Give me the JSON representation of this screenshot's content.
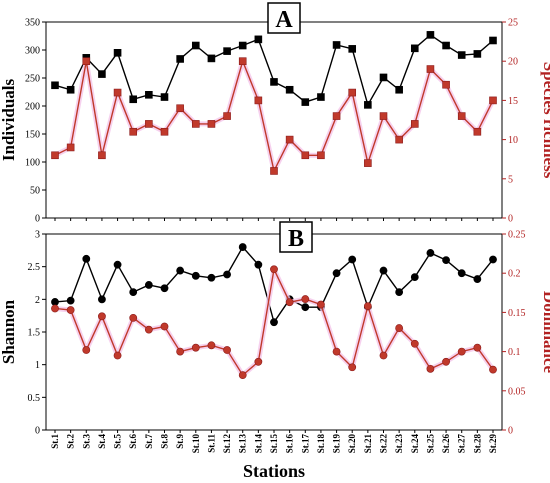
{
  "chart_data": [
    {
      "type": "line",
      "panel_label": "A",
      "x": [
        "St.1",
        "St.2",
        "St.3",
        "St.4",
        "St.5",
        "St.6",
        "St.7",
        "St.8",
        "St.9",
        "St.10",
        "St.11",
        "St.12",
        "St.13",
        "St.14",
        "St.15",
        "St.16",
        "St.17",
        "St.18",
        "St.19",
        "St.20",
        "St.21",
        "St.22",
        "St.23",
        "St.24",
        "St.25",
        "St.26",
        "St.27",
        "St.28",
        "St.29"
      ],
      "ylabel": "Individuals",
      "ylim": [
        0,
        350
      ],
      "yticks": [
        0,
        50,
        100,
        150,
        200,
        250,
        300,
        350
      ],
      "y2label": "Species richness",
      "y2lim": [
        0,
        25
      ],
      "y2ticks": [
        0,
        5,
        10,
        15,
        20,
        25
      ],
      "series": [
        {
          "axis": "left",
          "marker": "square",
          "color": "#000000",
          "values": [
            237,
            229,
            286,
            257,
            295,
            212,
            220,
            216,
            284,
            308,
            285,
            298,
            308,
            319,
            243,
            229,
            207,
            216,
            309,
            302,
            202,
            251,
            229,
            303,
            327,
            308,
            291,
            293,
            317
          ]
        },
        {
          "axis": "right",
          "marker": "square",
          "color": "#c0392b",
          "values": [
            8,
            9,
            20,
            8,
            16,
            11,
            12,
            11,
            14,
            12,
            12,
            13,
            20,
            15,
            6,
            10,
            8,
            8,
            13,
            16,
            7,
            13,
            10,
            12,
            19,
            17,
            13,
            11,
            15
          ]
        }
      ]
    },
    {
      "type": "line",
      "panel_label": "B",
      "x": [
        "St.1",
        "St.2",
        "St.3",
        "St.4",
        "St.5",
        "St.6",
        "St.7",
        "St.8",
        "St.9",
        "St.10",
        "St.11",
        "St.12",
        "St.13",
        "St.14",
        "St.15",
        "St.16",
        "St.17",
        "St.18",
        "St.19",
        "St.20",
        "St.21",
        "St.22",
        "St.23",
        "St.24",
        "St.25",
        "St.26",
        "St.27",
        "St.28",
        "St.29"
      ],
      "xlabel": "Stations",
      "ylabel": "Shannon",
      "ylim": [
        0,
        3
      ],
      "yticks": [
        "0",
        "0.5",
        "1",
        "1.5",
        "2",
        "2.5",
        "3"
      ],
      "y2label": "Dominance",
      "y2lim": [
        0,
        0.25
      ],
      "y2ticks": [
        "0",
        "0.05",
        "0.1",
        "0.15",
        "0.2",
        "0.25"
      ],
      "series": [
        {
          "axis": "left",
          "marker": "circle",
          "color": "#000000",
          "values": [
            1.96,
            1.98,
            2.62,
            2.0,
            2.53,
            2.11,
            2.22,
            2.17,
            2.44,
            2.36,
            2.33,
            2.38,
            2.8,
            2.53,
            1.65,
            2.0,
            1.88,
            1.88,
            2.4,
            2.61,
            1.88,
            2.44,
            2.11,
            2.34,
            2.71,
            2.6,
            2.4,
            2.31,
            2.61
          ]
        },
        {
          "axis": "right",
          "marker": "circle",
          "color": "#c0392b",
          "values": [
            0.155,
            0.153,
            0.102,
            0.145,
            0.095,
            0.143,
            0.128,
            0.132,
            0.1,
            0.105,
            0.108,
            0.102,
            0.07,
            0.087,
            0.205,
            0.163,
            0.167,
            0.16,
            0.1,
            0.08,
            0.158,
            0.095,
            0.13,
            0.11,
            0.078,
            0.087,
            0.1,
            0.105,
            0.077
          ]
        }
      ]
    }
  ]
}
